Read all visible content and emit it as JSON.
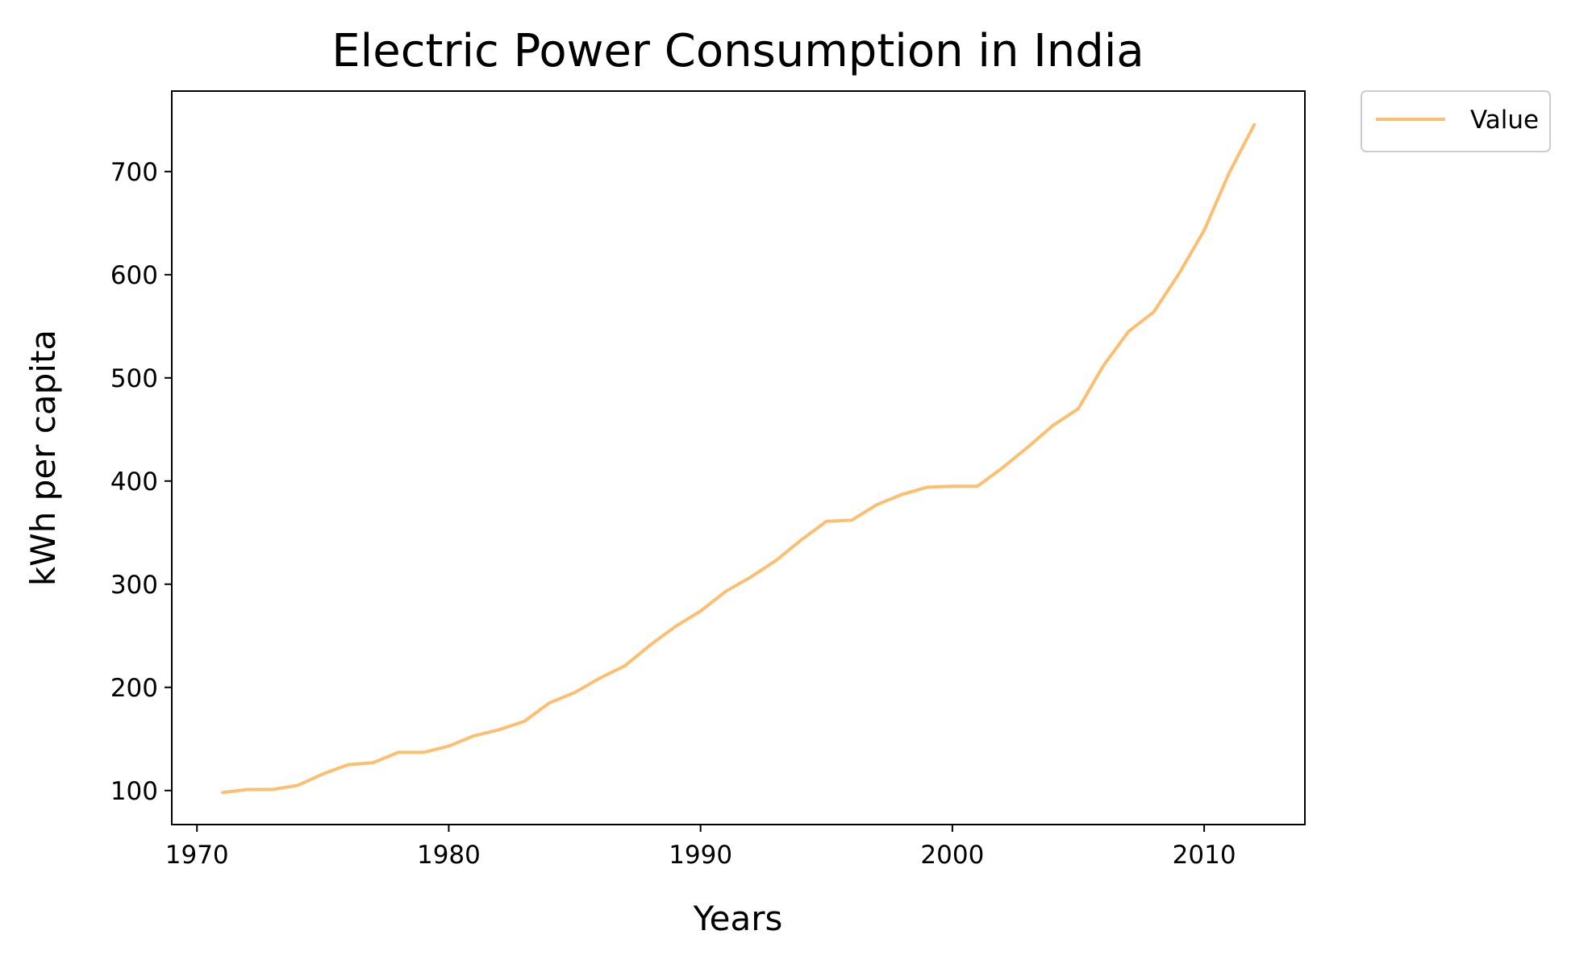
{
  "chart_data": {
    "type": "line",
    "title": "Electric Power Consumption in India",
    "xlabel": "Years",
    "ylabel": "kWh per capita",
    "xlim": [
      1969,
      2014
    ],
    "ylim": [
      67,
      778
    ],
    "xticks": [
      1970,
      1980,
      1990,
      2000,
      2010
    ],
    "yticks": [
      100,
      200,
      300,
      400,
      500,
      600,
      700
    ],
    "grid": false,
    "legend_position": "outside-top-right",
    "series": [
      {
        "name": "Value",
        "color": "#fdbf6f",
        "x": [
          1971,
          1972,
          1973,
          1974,
          1975,
          1976,
          1977,
          1978,
          1979,
          1980,
          1981,
          1982,
          1983,
          1984,
          1985,
          1986,
          1987,
          1988,
          1989,
          1990,
          1991,
          1992,
          1993,
          1994,
          1995,
          1996,
          1997,
          1998,
          1999,
          2000,
          2001,
          2002,
          2003,
          2004,
          2005,
          2006,
          2007,
          2008,
          2009,
          2010,
          2011,
          2012
        ],
        "values": [
          98,
          101,
          101,
          105,
          116,
          125,
          127,
          137,
          137,
          143,
          153,
          159,
          167,
          185,
          195,
          209,
          221,
          241,
          259,
          274,
          293,
          307,
          323,
          343,
          361,
          362,
          377,
          387,
          394,
          395,
          395,
          413,
          433,
          454,
          470,
          512,
          545,
          564,
          601,
          643,
          699,
          746
        ]
      }
    ]
  }
}
